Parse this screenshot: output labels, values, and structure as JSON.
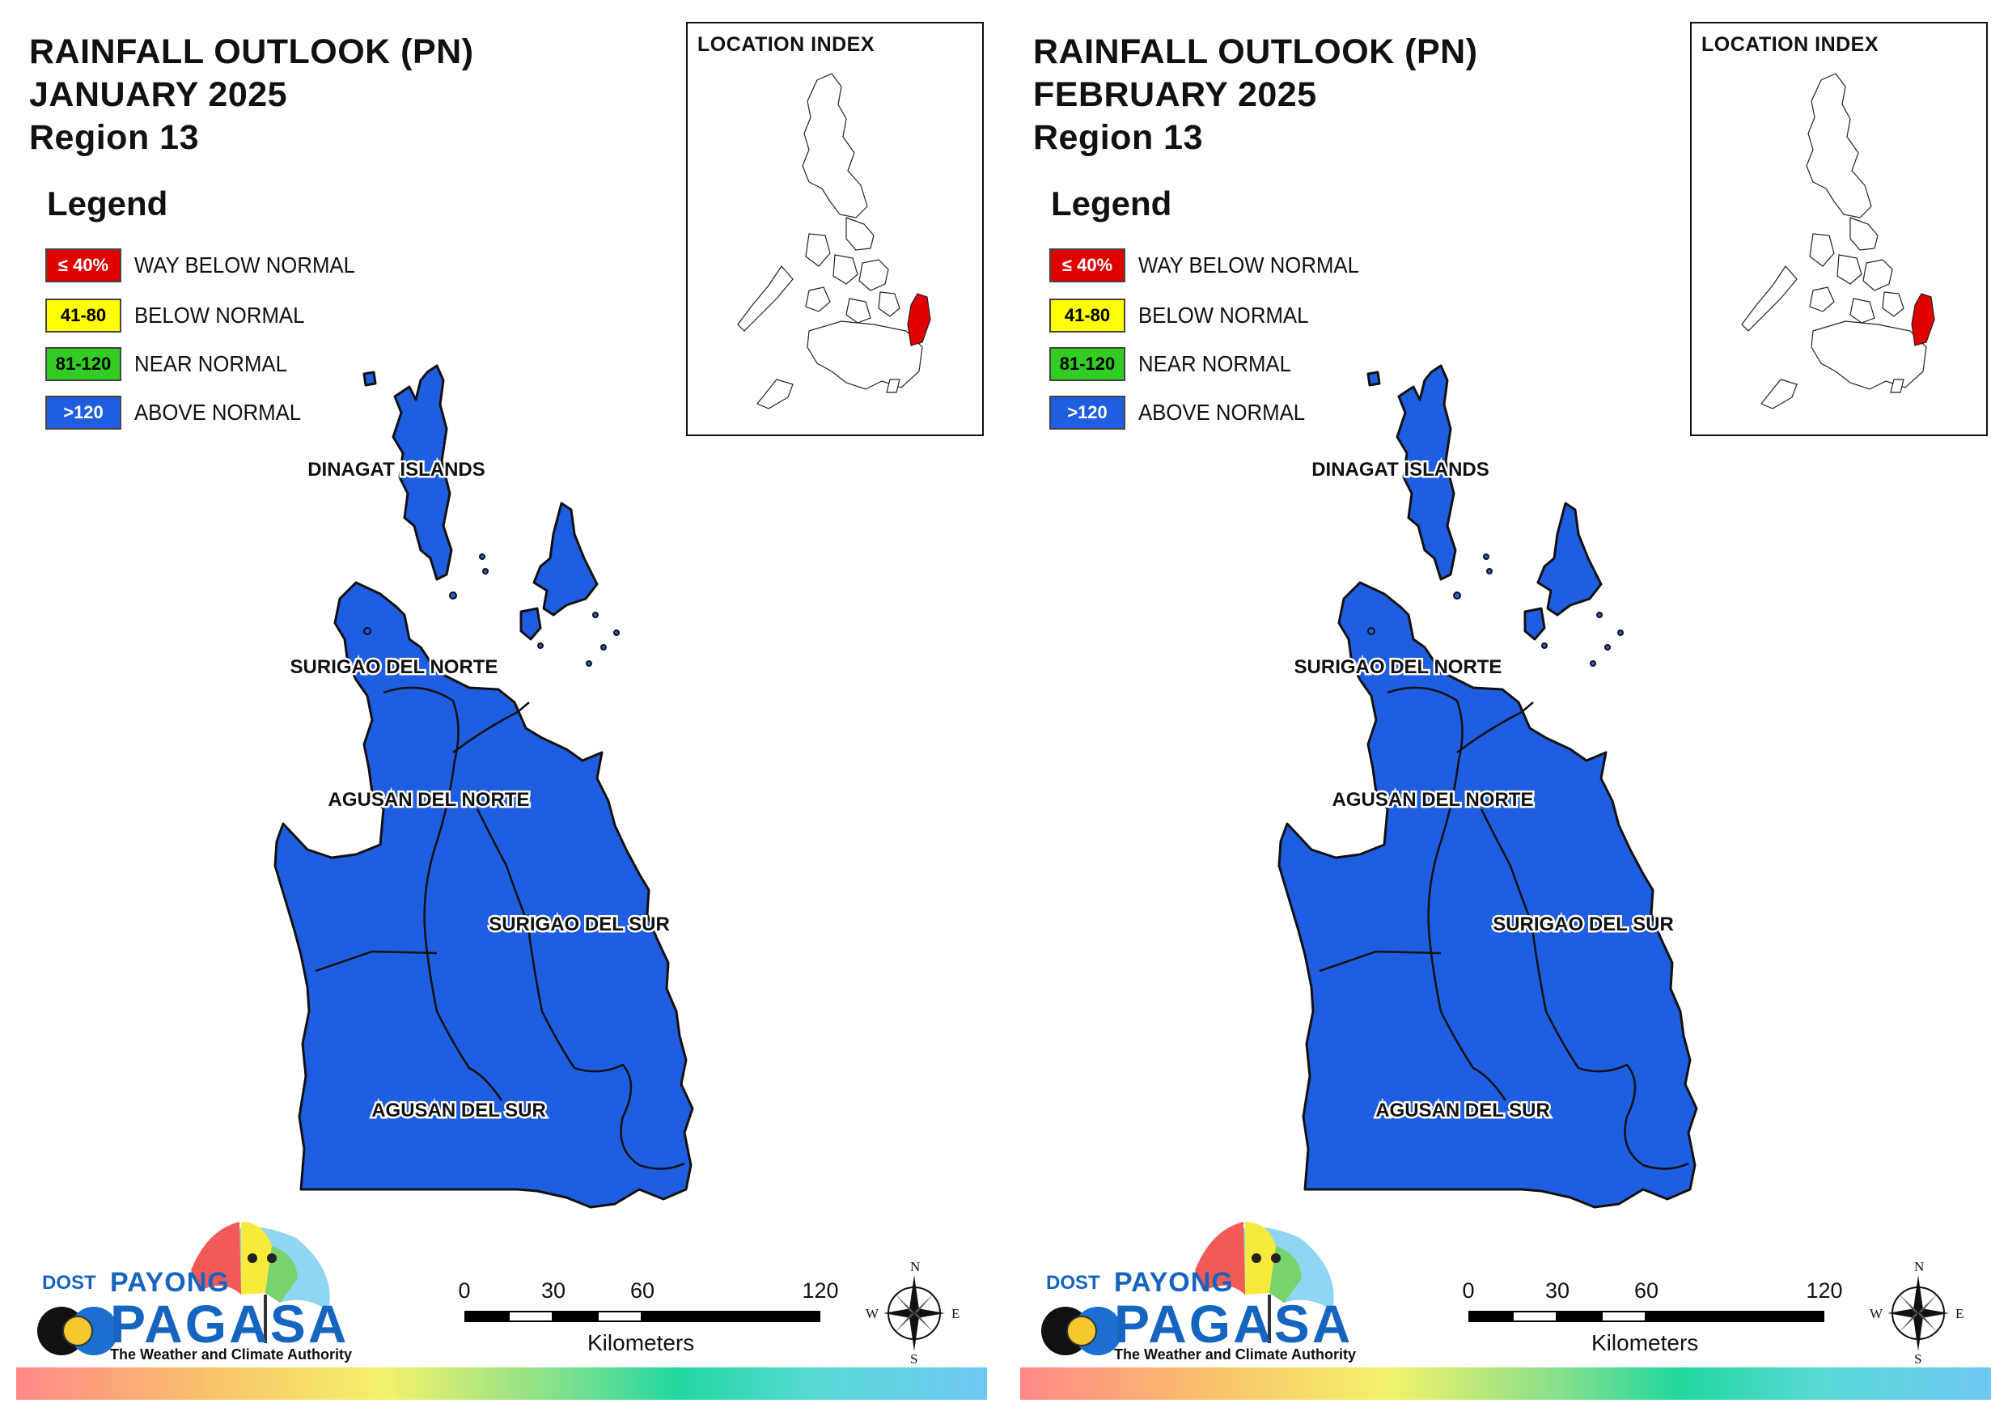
{
  "panels": [
    {
      "title_line1": "RAINFALL OUTLOOK (PN)",
      "title_line2": "JANUARY 2025",
      "title_line3": "Region 13",
      "legend_title": "Legend",
      "legend": [
        {
          "code": "≤ 40%",
          "label": "WAY BELOW NORMAL",
          "color": "#e00000",
          "text_color": "#ffffff"
        },
        {
          "code": "41-80",
          "label": "BELOW NORMAL",
          "color": "#ffff00",
          "text_color": "#000000"
        },
        {
          "code": "81-120",
          "label": "NEAR NORMAL",
          "color": "#33cc22",
          "text_color": "#000000"
        },
        {
          "code": ">120",
          "label": "ABOVE NORMAL",
          "color": "#1f5ee0",
          "text_color": "#ffffff"
        }
      ],
      "inset_title": "LOCATION INDEX",
      "provinces": [
        "DINAGAT ISLANDS",
        "SURIGAO DEL NORTE",
        "AGUSAN DEL NORTE",
        "SURIGAO DEL SUR",
        "AGUSAN DEL SUR"
      ],
      "fill_color": "#1f5ee0",
      "highlight_color": "#e00000",
      "scale": {
        "ticks": [
          "0",
          "30",
          "60",
          "120"
        ],
        "unit": "Kilometers"
      },
      "compass": {
        "n": "N",
        "e": "E",
        "s": "S",
        "w": "W"
      },
      "logo": {
        "dost": "DOST",
        "payong": "PAYONG",
        "pagasa": "PAGASA",
        "tagline": "The Weather and Climate Authority"
      }
    },
    {
      "title_line1": "RAINFALL OUTLOOK (PN)",
      "title_line2": "FEBRUARY 2025",
      "title_line3": "Region 13",
      "legend_title": "Legend",
      "legend": [
        {
          "code": "≤ 40%",
          "label": "WAY BELOW NORMAL",
          "color": "#e00000",
          "text_color": "#ffffff"
        },
        {
          "code": "41-80",
          "label": "BELOW NORMAL",
          "color": "#ffff00",
          "text_color": "#000000"
        },
        {
          "code": "81-120",
          "label": "NEAR NORMAL",
          "color": "#33cc22",
          "text_color": "#000000"
        },
        {
          "code": ">120",
          "label": "ABOVE NORMAL",
          "color": "#1f5ee0",
          "text_color": "#ffffff"
        }
      ],
      "inset_title": "LOCATION INDEX",
      "provinces": [
        "DINAGAT ISLANDS",
        "SURIGAO DEL NORTE",
        "AGUSAN DEL NORTE",
        "SURIGAO DEL SUR",
        "AGUSAN DEL SUR"
      ],
      "fill_color": "#1f5ee0",
      "highlight_color": "#e00000",
      "scale": {
        "ticks": [
          "0",
          "30",
          "60",
          "120"
        ],
        "unit": "Kilometers"
      },
      "compass": {
        "n": "N",
        "e": "E",
        "s": "S",
        "w": "W"
      },
      "logo": {
        "dost": "DOST",
        "payong": "PAYONG",
        "pagasa": "PAGASA",
        "tagline": "The Weather and Climate Authority"
      }
    }
  ]
}
